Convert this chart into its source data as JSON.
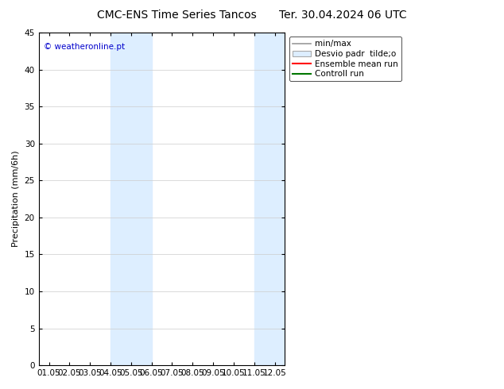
{
  "title_left": "CMC-ENS Time Series Tancos",
  "title_right": "Ter. 30.04.2024 06 UTC",
  "ylabel": "Precipitation (mm/6h)",
  "ylim": [
    0,
    45
  ],
  "yticks": [
    0,
    5,
    10,
    15,
    20,
    25,
    30,
    35,
    40,
    45
  ],
  "x_labels": [
    "01.05",
    "02.05",
    "03.05",
    "04.05",
    "05.05",
    "06.05",
    "07.05",
    "08.05",
    "09.05",
    "10.05",
    "11.05",
    "12.05"
  ],
  "x_values": [
    0,
    1,
    2,
    3,
    4,
    5,
    6,
    7,
    8,
    9,
    10,
    11
  ],
  "xlim": [
    -0.5,
    11.5
  ],
  "shaded_bands": [
    {
      "x_start": 3,
      "x_end": 5,
      "color": "#ddeeff"
    },
    {
      "x_start": 10,
      "x_end": 11.5,
      "color": "#ddeeff"
    }
  ],
  "watermark_text": "© weatheronline.pt",
  "watermark_color": "#0000cc",
  "legend_entries": [
    {
      "label": "min/max",
      "color": "#999999",
      "lw": 1.2,
      "type": "line"
    },
    {
      "label": "Desvio padr  tilde;o",
      "color": "#ddeeff",
      "edgecolor": "#aaaaaa",
      "type": "box"
    },
    {
      "label": "Ensemble mean run",
      "color": "#ff0000",
      "lw": 1.5,
      "type": "line"
    },
    {
      "label": "Controll run",
      "color": "#007700",
      "lw": 1.5,
      "type": "line"
    }
  ],
  "bg_color": "#ffffff",
  "axes_bg": "#ffffff",
  "grid_color": "#cccccc",
  "title_fontsize": 10,
  "label_fontsize": 8,
  "tick_fontsize": 7.5,
  "legend_fontsize": 7.5
}
